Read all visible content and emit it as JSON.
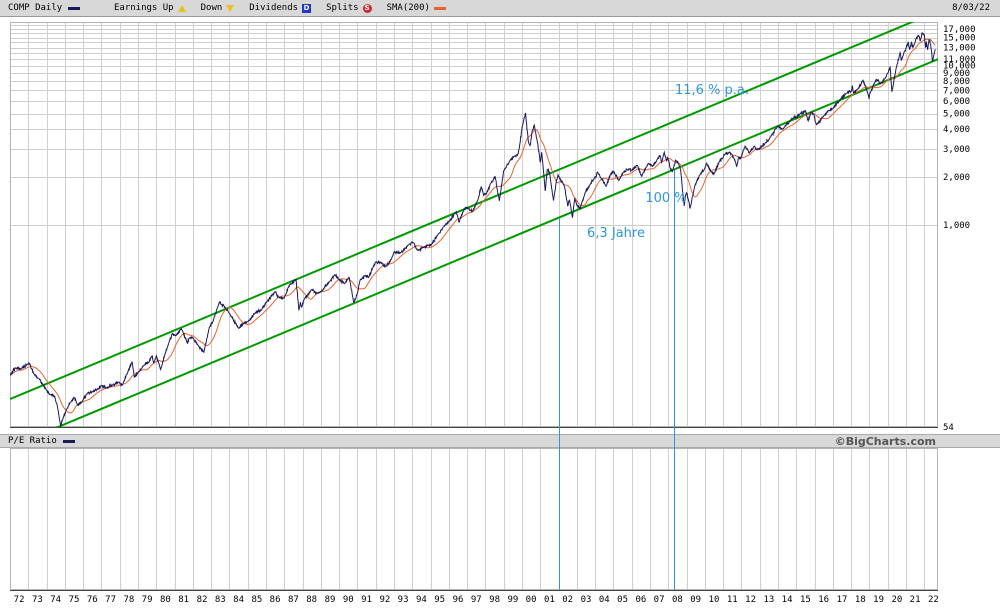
{
  "header": {
    "symbol_label": "COMP Daily",
    "price_swatch_color": "#1a1a5a",
    "date": "8/03/22",
    "legend": [
      {
        "label": "Earnings Up",
        "icon": "earnings-up-triangle-icon",
        "shape": "triangle-up",
        "color": "#e8c020"
      },
      {
        "label": "Down",
        "icon": "earnings-down-triangle-icon",
        "shape": "triangle-down",
        "color": "#e8c020"
      },
      {
        "label": "Dividends",
        "icon": "dividends-badge-icon",
        "shape": "square-badge",
        "letter": "D",
        "color": "#2038c8"
      },
      {
        "label": "Splits",
        "icon": "splits-badge-icon",
        "shape": "round-badge",
        "letter": "S",
        "color": "#cc2a2a"
      },
      {
        "label": "SMA(200)",
        "icon": "sma-line-swatch-icon",
        "shape": "dash",
        "color": "#e8622d"
      }
    ]
  },
  "pe_band": {
    "label": "P/E Ratio",
    "swatch_color": "#1a1a5a",
    "credit": "©BigCharts.com"
  },
  "chart_data": {
    "type": "line",
    "title": "COMP Daily",
    "scale": "log",
    "x_range": [
      1972.0,
      2022.75
    ],
    "y_log_range": [
      54,
      18800
    ],
    "y_grid": {
      "from": 1000,
      "to": 18000,
      "step": 1000
    },
    "y_tick_labels": [
      [
        17000,
        "17,000"
      ],
      [
        15000,
        "15,000"
      ],
      [
        13000,
        "13,000"
      ],
      [
        11000,
        "11,000"
      ],
      [
        10000,
        "10,000"
      ],
      [
        9000,
        "9,000"
      ],
      [
        8000,
        "8,000"
      ],
      [
        7000,
        "7,000"
      ],
      [
        6000,
        "6,000"
      ],
      [
        5000,
        "5,000"
      ],
      [
        4000,
        "4,000"
      ],
      [
        3000,
        "3,000"
      ],
      [
        2000,
        "2,000"
      ],
      [
        1000,
        "1,000"
      ]
    ],
    "y_floor_label": [
      54,
      "54"
    ],
    "x_tick_labels": [
      "72",
      "73",
      "74",
      "75",
      "76",
      "77",
      "78",
      "79",
      "80",
      "81",
      "82",
      "83",
      "84",
      "85",
      "86",
      "87",
      "88",
      "89",
      "90",
      "91",
      "92",
      "93",
      "94",
      "95",
      "96",
      "97",
      "98",
      "99",
      "00",
      "01",
      "02",
      "03",
      "04",
      "05",
      "06",
      "07",
      "08",
      "09",
      "10",
      "11",
      "12",
      "13",
      "14",
      "15",
      "16",
      "17",
      "18",
      "19",
      "20",
      "21",
      "22"
    ],
    "series": [
      {
        "name": "COMP close",
        "color": "#1a1a5a",
        "points": [
          [
            1972.0,
            114
          ],
          [
            1972.3,
            127
          ],
          [
            1972.6,
            125
          ],
          [
            1972.95,
            134
          ],
          [
            1973.05,
            136
          ],
          [
            1973.3,
            117
          ],
          [
            1973.6,
            108
          ],
          [
            1973.8,
            100
          ],
          [
            1974.0,
            92
          ],
          [
            1974.2,
            86
          ],
          [
            1974.45,
            84
          ],
          [
            1974.6,
            72
          ],
          [
            1974.77,
            55
          ],
          [
            1974.9,
            61
          ],
          [
            1975.1,
            70
          ],
          [
            1975.35,
            78
          ],
          [
            1975.5,
            83
          ],
          [
            1975.7,
            74
          ],
          [
            1975.95,
            78
          ],
          [
            1976.2,
            87
          ],
          [
            1976.5,
            90
          ],
          [
            1976.75,
            93
          ],
          [
            1977.0,
            98
          ],
          [
            1977.3,
            95
          ],
          [
            1977.6,
            99
          ],
          [
            1977.95,
            103
          ],
          [
            1978.15,
            99
          ],
          [
            1978.45,
            120
          ],
          [
            1978.68,
            139
          ],
          [
            1978.8,
            111
          ],
          [
            1979.0,
            118
          ],
          [
            1979.3,
            131
          ],
          [
            1979.6,
            138
          ],
          [
            1979.78,
            152
          ],
          [
            1979.86,
            136
          ],
          [
            1980.0,
            151
          ],
          [
            1980.24,
            124
          ],
          [
            1980.5,
            158
          ],
          [
            1980.7,
            185
          ],
          [
            1980.88,
            208
          ],
          [
            1981.05,
            202
          ],
          [
            1981.38,
            223
          ],
          [
            1981.7,
            181
          ],
          [
            1981.8,
            195
          ],
          [
            1982.0,
            196
          ],
          [
            1982.3,
            175
          ],
          [
            1982.6,
            159
          ],
          [
            1982.9,
            228
          ],
          [
            1983.1,
            248
          ],
          [
            1983.45,
            329
          ],
          [
            1983.8,
            300
          ],
          [
            1984.0,
            279
          ],
          [
            1984.5,
            225
          ],
          [
            1984.8,
            242
          ],
          [
            1985.0,
            247
          ],
          [
            1985.4,
            280
          ],
          [
            1985.75,
            293
          ],
          [
            1986.0,
            325
          ],
          [
            1986.5,
            382
          ],
          [
            1986.72,
            350
          ],
          [
            1987.0,
            349
          ],
          [
            1987.3,
            424
          ],
          [
            1987.64,
            455
          ],
          [
            1987.8,
            291
          ],
          [
            1987.88,
            328
          ],
          [
            1987.95,
            305
          ],
          [
            1988.1,
            344
          ],
          [
            1988.5,
            394
          ],
          [
            1988.8,
            372
          ],
          [
            1989.0,
            381
          ],
          [
            1989.5,
            445
          ],
          [
            1989.76,
            487
          ],
          [
            1990.0,
            455
          ],
          [
            1990.3,
            428
          ],
          [
            1990.55,
            469
          ],
          [
            1990.8,
            325
          ],
          [
            1991.0,
            374
          ],
          [
            1991.15,
            453
          ],
          [
            1991.45,
            482
          ],
          [
            1991.6,
            468
          ],
          [
            1991.85,
            542
          ],
          [
            1992.0,
            586
          ],
          [
            1992.3,
            579
          ],
          [
            1992.55,
            547
          ],
          [
            1992.85,
            610
          ],
          [
            1993.0,
            677
          ],
          [
            1993.35,
            668
          ],
          [
            1993.8,
            752
          ],
          [
            1994.05,
            777
          ],
          [
            1994.3,
            693
          ],
          [
            1994.6,
            722
          ],
          [
            1994.9,
            747
          ],
          [
            1995.05,
            755
          ],
          [
            1995.4,
            868
          ],
          [
            1995.8,
            1005
          ],
          [
            1996.0,
            1052
          ],
          [
            1996.4,
            1210
          ],
          [
            1996.56,
            1042
          ],
          [
            1996.8,
            1232
          ],
          [
            1997.0,
            1291
          ],
          [
            1997.3,
            1221
          ],
          [
            1997.6,
            1450
          ],
          [
            1997.77,
            1745
          ],
          [
            1997.9,
            1533
          ],
          [
            1998.05,
            1570
          ],
          [
            1998.3,
            1835
          ],
          [
            1998.53,
            2014
          ],
          [
            1998.76,
            1419
          ],
          [
            1999.0,
            2193
          ],
          [
            1999.3,
            2485
          ],
          [
            1999.55,
            2688
          ],
          [
            1999.75,
            2736
          ],
          [
            1999.85,
            3028
          ],
          [
            2000.0,
            4069
          ],
          [
            2000.19,
            5048
          ],
          [
            2000.35,
            3321
          ],
          [
            2000.45,
            3164
          ],
          [
            2000.55,
            3860
          ],
          [
            2000.67,
            4234
          ],
          [
            2000.85,
            3300
          ],
          [
            2001.0,
            2471
          ],
          [
            2001.08,
            2860
          ],
          [
            2001.27,
            1638
          ],
          [
            2001.38,
            2220
          ],
          [
            2001.5,
            2160
          ],
          [
            2001.72,
            1423
          ],
          [
            2001.9,
            1930
          ],
          [
            2001.97,
            2066
          ],
          [
            2002.05,
            1950
          ],
          [
            2002.2,
            1870
          ],
          [
            2002.33,
            1741
          ],
          [
            2002.5,
            1320
          ],
          [
            2002.6,
            1440
          ],
          [
            2002.76,
            1114
          ],
          [
            2002.88,
            1478
          ],
          [
            2003.0,
            1336
          ],
          [
            2003.18,
            1271
          ],
          [
            2003.45,
            1595
          ],
          [
            2003.7,
            1780
          ],
          [
            2003.95,
            1960
          ],
          [
            2004.05,
            2003
          ],
          [
            2004.12,
            2150
          ],
          [
            2004.3,
            1990
          ],
          [
            2004.6,
            1752
          ],
          [
            2004.85,
            2100
          ],
          [
            2005.0,
            2175
          ],
          [
            2005.3,
            1904
          ],
          [
            2005.55,
            2150
          ],
          [
            2005.85,
            2250
          ],
          [
            2006.0,
            2205
          ],
          [
            2006.3,
            2370
          ],
          [
            2006.55,
            2020
          ],
          [
            2006.9,
            2430
          ],
          [
            2007.0,
            2415
          ],
          [
            2007.15,
            2340
          ],
          [
            2007.4,
            2578
          ],
          [
            2007.55,
            2720
          ],
          [
            2007.63,
            2475
          ],
          [
            2007.78,
            2859
          ],
          [
            2007.9,
            2540
          ],
          [
            2007.97,
            2652
          ],
          [
            2008.1,
            2280
          ],
          [
            2008.22,
            2170
          ],
          [
            2008.4,
            2550
          ],
          [
            2008.55,
            2450
          ],
          [
            2008.68,
            2210
          ],
          [
            2008.78,
            1650
          ],
          [
            2008.87,
            1316
          ],
          [
            2008.95,
            1550
          ],
          [
            2009.02,
            1577
          ],
          [
            2009.1,
            1440
          ],
          [
            2009.19,
            1269
          ],
          [
            2009.45,
            1760
          ],
          [
            2009.75,
            2090
          ],
          [
            2010.0,
            2269
          ],
          [
            2010.1,
            2440
          ],
          [
            2010.35,
            2150
          ],
          [
            2010.5,
            2092
          ],
          [
            2010.8,
            2520
          ],
          [
            2011.0,
            2653
          ],
          [
            2011.1,
            2790
          ],
          [
            2011.35,
            2874
          ],
          [
            2011.6,
            2615
          ],
          [
            2011.74,
            2336
          ],
          [
            2011.85,
            2660
          ],
          [
            2011.95,
            2605
          ],
          [
            2012.2,
            3123
          ],
          [
            2012.42,
            2827
          ],
          [
            2012.7,
            3120
          ],
          [
            2012.85,
            2960
          ],
          [
            2013.0,
            3020
          ],
          [
            2013.3,
            3260
          ],
          [
            2013.6,
            3590
          ],
          [
            2013.9,
            4045
          ],
          [
            2014.0,
            4177
          ],
          [
            2014.28,
            3999
          ],
          [
            2014.7,
            4580
          ],
          [
            2014.9,
            4790
          ],
          [
            2015.0,
            4736
          ],
          [
            2015.2,
            4990
          ],
          [
            2015.5,
            5219
          ],
          [
            2015.65,
            4506
          ],
          [
            2015.8,
            5100
          ],
          [
            2015.95,
            5007
          ],
          [
            2016.1,
            4267
          ],
          [
            2016.5,
            4840
          ],
          [
            2016.8,
            5250
          ],
          [
            2017.0,
            5383
          ],
          [
            2017.4,
            6120
          ],
          [
            2017.75,
            6720
          ],
          [
            2018.0,
            6903
          ],
          [
            2018.07,
            7505
          ],
          [
            2018.13,
            6777
          ],
          [
            2018.35,
            7100
          ],
          [
            2018.65,
            8109
          ],
          [
            2018.85,
            7050
          ],
          [
            2018.98,
            6193
          ],
          [
            2019.02,
            6635
          ],
          [
            2019.3,
            7900
          ],
          [
            2019.42,
            8160
          ],
          [
            2019.6,
            7700
          ],
          [
            2019.85,
            8300
          ],
          [
            2020.0,
            8973
          ],
          [
            2020.13,
            9817
          ],
          [
            2020.23,
            6861
          ],
          [
            2020.45,
            9490
          ],
          [
            2020.68,
            12056
          ],
          [
            2020.74,
            10847
          ],
          [
            2020.9,
            12200
          ],
          [
            2021.0,
            12888
          ],
          [
            2021.12,
            14095
          ],
          [
            2021.2,
            12609
          ],
          [
            2021.3,
            14000
          ],
          [
            2021.38,
            13000
          ],
          [
            2021.55,
            14800
          ],
          [
            2021.7,
            15374
          ],
          [
            2021.78,
            14255
          ],
          [
            2021.88,
            16057
          ],
          [
            2022.0,
            15645
          ],
          [
            2022.07,
            13094
          ],
          [
            2022.12,
            14000
          ],
          [
            2022.18,
            12581
          ],
          [
            2022.27,
            14620
          ],
          [
            2022.35,
            13500
          ],
          [
            2022.45,
            10646
          ],
          [
            2022.55,
            12100
          ],
          [
            2022.6,
            12668
          ]
        ]
      },
      {
        "name": "SMA(200)",
        "color": "#e8622d",
        "derived": "200-day moving average of COMP close"
      }
    ],
    "trend_channel": {
      "label": "11,6 % p.a.",
      "color": "#009900",
      "base_year": 1974.77,
      "base_value": 54.87,
      "annual_rate": 1.1168,
      "channel_factor": 2
    },
    "period_markers": {
      "color": "#3095dd",
      "start_year": 2002.0,
      "end_year": 2008.3,
      "gain_label": "100 %",
      "duration_label": "6,3 Jahre"
    }
  }
}
